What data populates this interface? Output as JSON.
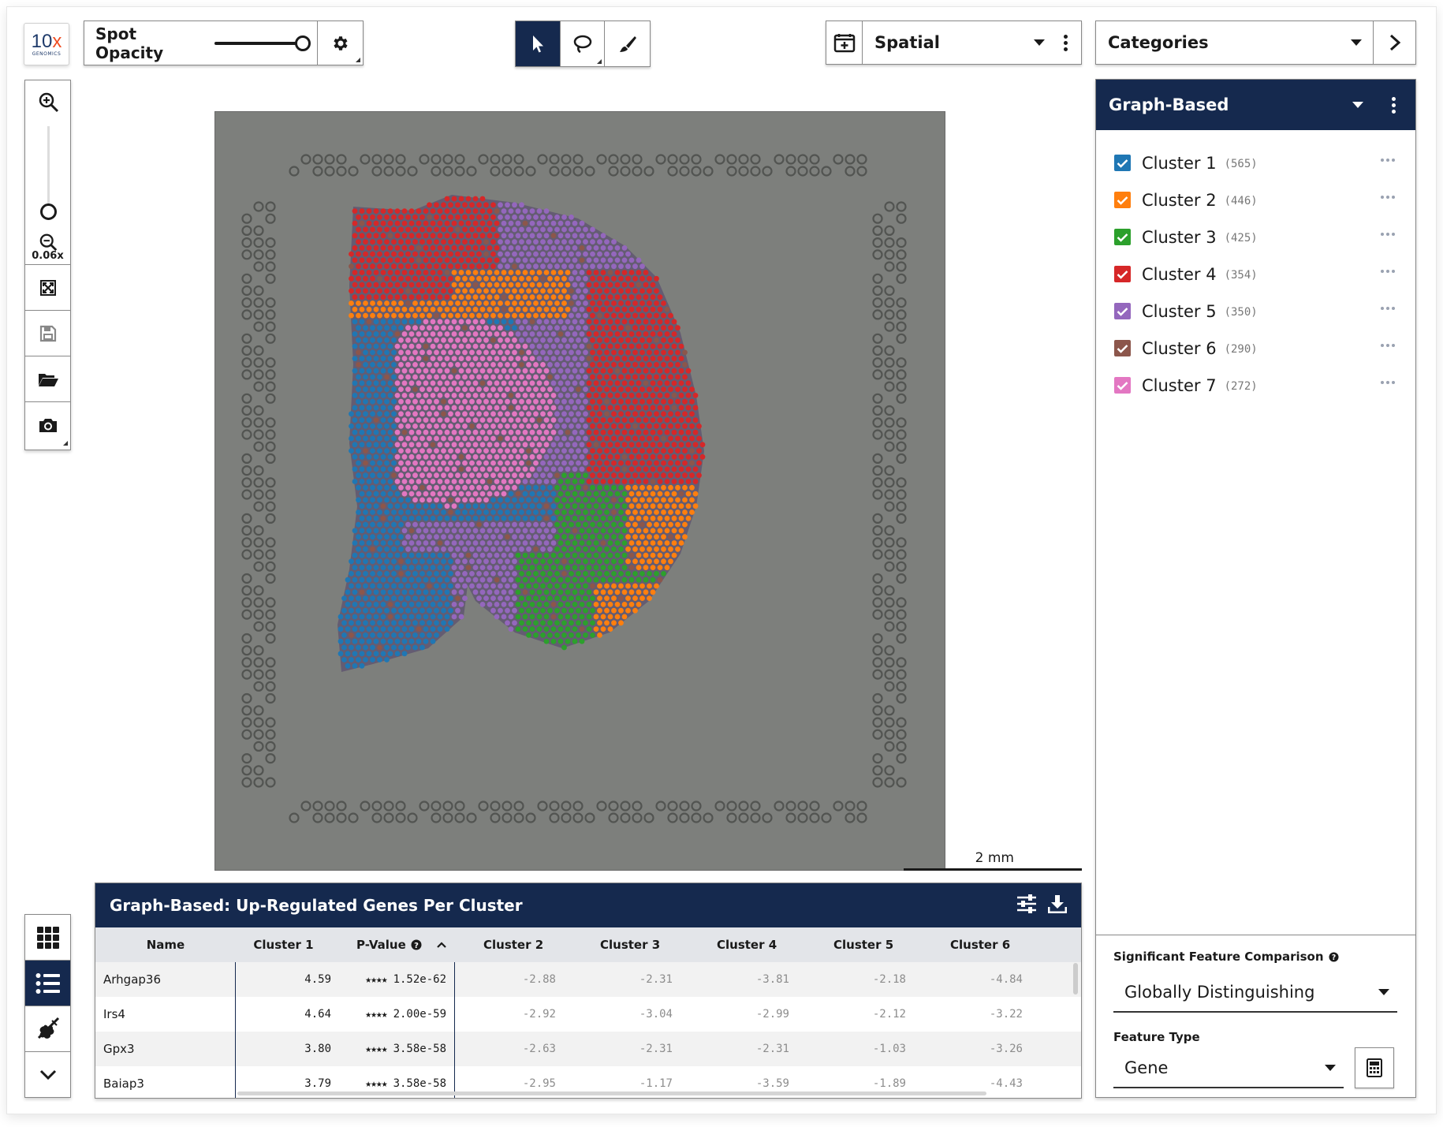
{
  "logo": {
    "main": "10",
    "accent": "x",
    "sub": "GENOMICS"
  },
  "toolbar": {
    "spot_opacity_label": "Spot Opacity",
    "spot_opacity_value": 1.0,
    "settings_icon": "gear-icon",
    "tools": [
      {
        "name": "pointer-icon",
        "active": true
      },
      {
        "name": "lasso-icon",
        "active": false
      },
      {
        "name": "brush-icon",
        "active": false
      }
    ],
    "view_select": "Spatial",
    "categories_select": "Categories"
  },
  "left_toolbar": {
    "zoom_level": "0.06x",
    "zoom_fraction": 0.0,
    "buttons": [
      "zoom-in-icon",
      "zoom-out-icon",
      "fit-to-screen-icon",
      "save-icon",
      "open-folder-icon",
      "camera-icon"
    ]
  },
  "view_toolbar": {
    "buttons": [
      {
        "name": "grid-view-icon",
        "active": false
      },
      {
        "name": "list-view-icon",
        "active": true
      },
      {
        "name": "violin-plot-icon",
        "active": false
      },
      {
        "name": "chevron-down-icon",
        "active": false
      }
    ]
  },
  "scalebar": {
    "label": "2 mm"
  },
  "cluster_panel": {
    "title": "Graph-Based",
    "clusters": [
      {
        "name": "Cluster 1",
        "count": "(565)",
        "color": "#1f77b4"
      },
      {
        "name": "Cluster 2",
        "count": "(446)",
        "color": "#ff7f0e"
      },
      {
        "name": "Cluster 3",
        "count": "(425)",
        "color": "#2ca02c"
      },
      {
        "name": "Cluster 4",
        "count": "(354)",
        "color": "#d62728"
      },
      {
        "name": "Cluster 5",
        "count": "(350)",
        "color": "#9467bd"
      },
      {
        "name": "Cluster 6",
        "count": "(290)",
        "color": "#8c564b"
      },
      {
        "name": "Cluster 7",
        "count": "(272)",
        "color": "#e377c2"
      }
    ],
    "sig_label": "Significant Feature Comparison",
    "sig_value": "Globally Distinguishing",
    "feature_type_label": "Feature Type",
    "feature_type_value": "Gene"
  },
  "gene_table": {
    "title": "Graph-Based: Up-Regulated Genes Per Cluster",
    "columns": [
      "Name",
      "Cluster 1",
      "P-Value",
      "Cluster 2",
      "Cluster 3",
      "Cluster 4",
      "Cluster 5",
      "Cluster 6"
    ],
    "rows": [
      {
        "name": "Arhgap36",
        "c1": "4.59",
        "stars": "★★★★",
        "pvalue": "1.52e-62",
        "c2": "-2.88",
        "c3": "-2.31",
        "c4": "-3.81",
        "c5": "-2.18",
        "c6": "-4.84"
      },
      {
        "name": "Irs4",
        "c1": "4.64",
        "stars": "★★★★",
        "pvalue": "2.00e-59",
        "c2": "-2.92",
        "c3": "-3.04",
        "c4": "-2.99",
        "c5": "-2.12",
        "c6": "-3.22"
      },
      {
        "name": "Gpx3",
        "c1": "3.80",
        "stars": "★★★★",
        "pvalue": "3.58e-58",
        "c2": "-2.63",
        "c3": "-2.31",
        "c4": "-2.31",
        "c5": "-1.03",
        "c6": "-3.26"
      },
      {
        "name": "Baiap3",
        "c1": "3.79",
        "stars": "★★★★",
        "pvalue": "3.58e-58",
        "c2": "-2.95",
        "c3": "-1.17",
        "c4": "-3.59",
        "c5": "-1.89",
        "c6": "-4.43"
      }
    ]
  }
}
